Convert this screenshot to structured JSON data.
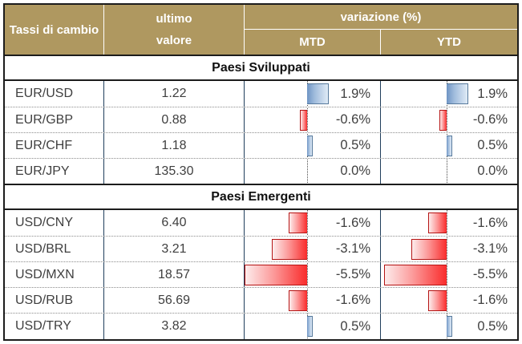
{
  "table": {
    "title": "Tassi di cambio",
    "header": {
      "col_pair": "Tassi di cambio",
      "col_value_line1": "ultimo",
      "col_value_line2": "valore",
      "group_variation": "variazione (%)",
      "col_mtd": "MTD",
      "col_ytd": "YTD"
    },
    "colors": {
      "header_bg": "#AF9860",
      "header_text": "#FFFFFF",
      "body_text": "#3F3F3F",
      "positive_bar": "#638EC6",
      "negative_bar": "#F92B2B",
      "column_divider": "#203E5C"
    },
    "sections": [
      {
        "title": "Paesi Sviluppati",
        "rows": [
          {
            "pair": "EUR/USD",
            "value": "1.22",
            "mtd": 1.9,
            "mtd_label": "1.9%",
            "ytd": 1.9,
            "ytd_label": "1.9%"
          },
          {
            "pair": "EUR/GBP",
            "value": "0.88",
            "mtd": -0.6,
            "mtd_label": "-0.6%",
            "ytd": -0.6,
            "ytd_label": "-0.6%"
          },
          {
            "pair": "EUR/CHF",
            "value": "1.18",
            "mtd": 0.5,
            "mtd_label": "0.5%",
            "ytd": 0.5,
            "ytd_label": "0.5%"
          },
          {
            "pair": "EUR/JPY",
            "value": "135.30",
            "mtd": 0.0,
            "mtd_label": "0.0%",
            "ytd": 0.0,
            "ytd_label": "0.0%"
          }
        ]
      },
      {
        "title": "Paesi Emergenti",
        "rows": [
          {
            "pair": "USD/CNY",
            "value": "6.40",
            "mtd": -1.6,
            "mtd_label": "-1.6%",
            "ytd": -1.6,
            "ytd_label": "-1.6%"
          },
          {
            "pair": "USD/BRL",
            "value": "3.21",
            "mtd": -3.1,
            "mtd_label": "-3.1%",
            "ytd": -3.1,
            "ytd_label": "-3.1%"
          },
          {
            "pair": "USD/MXN",
            "value": "18.57",
            "mtd": -5.5,
            "mtd_label": "-5.5%",
            "ytd": -5.5,
            "ytd_label": "-5.5%"
          },
          {
            "pair": "USD/RUB",
            "value": "56.69",
            "mtd": -1.6,
            "mtd_label": "-1.6%",
            "ytd": -1.6,
            "ytd_label": "-1.6%"
          },
          {
            "pair": "USD/TRY",
            "value": "3.82",
            "mtd": 0.5,
            "mtd_label": "0.5%",
            "ytd": 0.5,
            "ytd_label": "0.5%"
          }
        ]
      }
    ]
  },
  "chart_data": {
    "type": "table",
    "title": "Tassi di cambio",
    "columns": [
      "Tassi di cambio",
      "ultimo valore",
      "variazione (%) MTD",
      "variazione (%) YTD"
    ],
    "groups": [
      {
        "group": "Paesi Sviluppati",
        "rows": [
          [
            "EUR/USD",
            1.22,
            1.9,
            1.9
          ],
          [
            "EUR/GBP",
            0.88,
            -0.6,
            -0.6
          ],
          [
            "EUR/CHF",
            1.18,
            0.5,
            0.5
          ],
          [
            "EUR/JPY",
            135.3,
            0.0,
            0.0
          ]
        ]
      },
      {
        "group": "Paesi Emergenti",
        "rows": [
          [
            "USD/CNY",
            6.4,
            -1.6,
            -1.6
          ],
          [
            "USD/BRL",
            3.21,
            -3.1,
            -3.1
          ],
          [
            "USD/MXN",
            18.57,
            -5.5,
            -5.5
          ],
          [
            "USD/RUB",
            56.69,
            -1.6,
            -1.6
          ],
          [
            "USD/TRY",
            3.82,
            0.5,
            0.5
          ]
        ]
      }
    ],
    "bar_style": "excel-gradient-data-bars",
    "bar_axis": "dotted vertical zero line inside MTD/YTD cells",
    "positive_color": "#638EC6",
    "negative_color": "#F92B2B",
    "value_range": [
      -5.5,
      1.9
    ]
  }
}
